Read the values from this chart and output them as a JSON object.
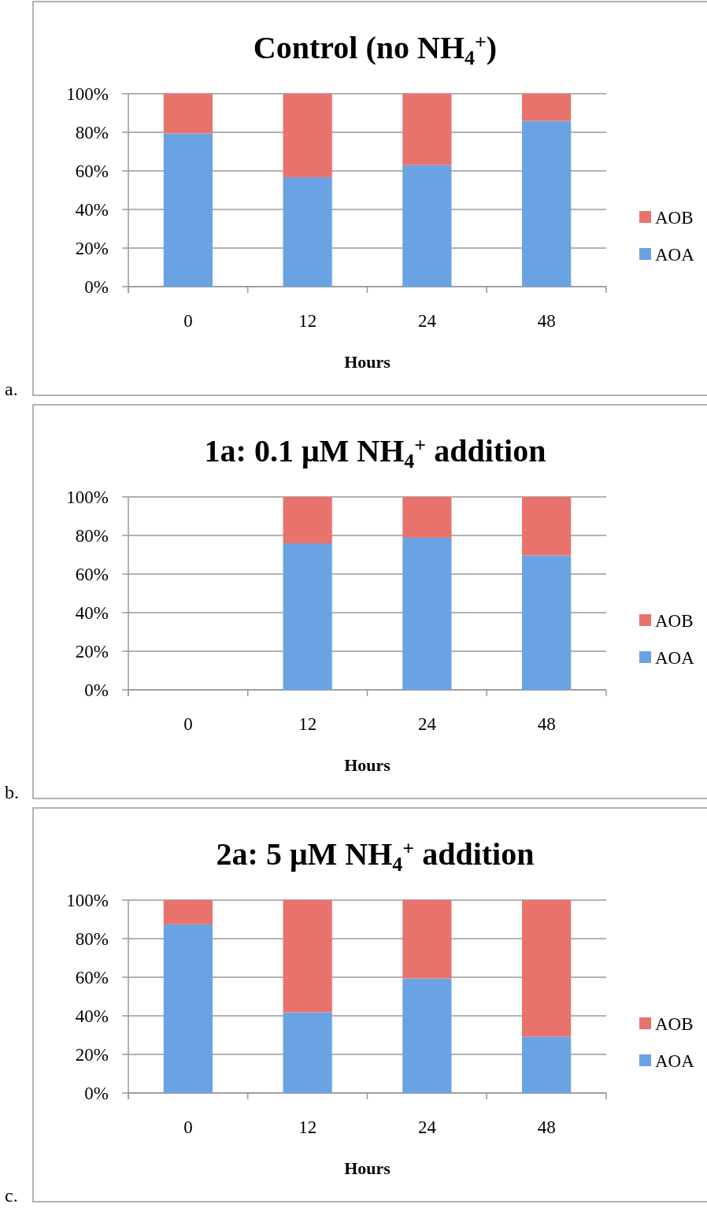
{
  "chart_data": [
    {
      "type": "bar",
      "title": "Control (no NH$_{4}$$^{+}$)",
      "xlabel": "Hours",
      "categories": [
        "0",
        "12",
        "24",
        "48"
      ],
      "stacked": true,
      "series": [
        {
          "name": "AOA",
          "color": "#6aa3e3",
          "values": [
            79.4,
            56.7,
            63.0,
            85.9
          ]
        },
        {
          "name": "AOB",
          "color": "#e8736c",
          "values": [
            20.6,
            43.3,
            37.0,
            14.1
          ]
        }
      ],
      "ylim": [
        0,
        100
      ],
      "yticks": [
        {
          "value": 0,
          "label": "0%"
        },
        {
          "value": 20,
          "label": "20%"
        },
        {
          "value": 40,
          "label": "40%"
        },
        {
          "value": 60,
          "label": "60%"
        },
        {
          "value": 80,
          "label": "80%"
        },
        {
          "value": 100,
          "label": "100%"
        }
      ],
      "grid": "y",
      "legend": "right",
      "annotations": [
        "a."
      ]
    },
    {
      "type": "bar",
      "title": "1a: 0.1 μM NH$_{4}$$^{+}$ addition",
      "xlabel": "Hours",
      "categories": [
        "0",
        "12",
        "24",
        "48"
      ],
      "stacked": true,
      "series": [
        {
          "name": "AOA",
          "color": "#6aa3e3",
          "values": [
            null,
            75.9,
            78.8,
            69.6
          ]
        },
        {
          "name": "AOB",
          "color": "#e8736c",
          "values": [
            null,
            24.1,
            21.2,
            30.4
          ]
        }
      ],
      "ylim": [
        0,
        100
      ],
      "yticks": [
        {
          "value": 0,
          "label": "0%"
        },
        {
          "value": 20,
          "label": "20%"
        },
        {
          "value": 40,
          "label": "40%"
        },
        {
          "value": 60,
          "label": "60%"
        },
        {
          "value": 80,
          "label": "80%"
        },
        {
          "value": 100,
          "label": "100%"
        }
      ],
      "grid": "y",
      "legend": "right",
      "annotations": [
        "b."
      ]
    },
    {
      "type": "bar",
      "title": "2a: 5 μM NH$_{4}$$^{+}$ addition",
      "xlabel": "Hours",
      "categories": [
        "0",
        "12",
        "24",
        "48"
      ],
      "stacked": true,
      "series": [
        {
          "name": "AOA",
          "color": "#6aa3e3",
          "values": [
            87.4,
            41.8,
            59.4,
            29.2
          ]
        },
        {
          "name": "AOB",
          "color": "#e8736c",
          "values": [
            12.6,
            58.2,
            40.6,
            70.8
          ]
        }
      ],
      "ylim": [
        0,
        100
      ],
      "yticks": [
        {
          "value": 0,
          "label": "0%"
        },
        {
          "value": 20,
          "label": "20%"
        },
        {
          "value": 40,
          "label": "40%"
        },
        {
          "value": 60,
          "label": "60%"
        },
        {
          "value": 80,
          "label": "80%"
        },
        {
          "value": 100,
          "label": "100%"
        }
      ],
      "grid": "y",
      "legend": "right",
      "annotations": [
        "c."
      ]
    }
  ]
}
